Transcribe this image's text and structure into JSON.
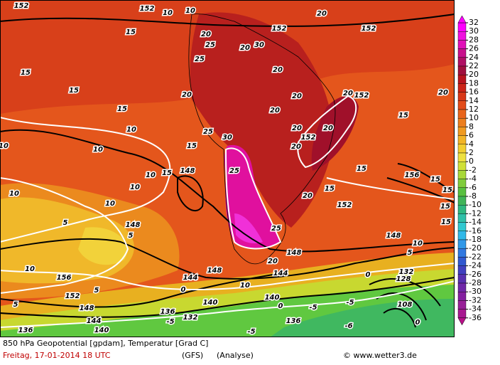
{
  "footer": {
    "title": "850 hPa Geopotential [gpdam], Temperatur [Grad C]",
    "date": "Freitag, 17-01-2014  18 UTC",
    "model": "(GFS)",
    "run": "(Analyse)",
    "credit": "© www.wetter3.de"
  },
  "contour_labels": [
    "152",
    "152",
    "10",
    "10",
    "20",
    "15",
    "20",
    "25",
    "30",
    "20",
    "152",
    "152",
    "25",
    "20",
    "15",
    "15",
    "20",
    "20",
    "20",
    "152",
    "20",
    "15",
    "20",
    "15",
    "10",
    "20",
    "152",
    "20",
    "20",
    "10",
    "15",
    "10",
    "25",
    "30",
    "25",
    "15",
    "148",
    "15",
    "10",
    "10",
    "15",
    "156",
    "15",
    "15",
    "10",
    "10",
    "20",
    "152",
    "15",
    "15",
    "5",
    "148",
    "5",
    "25",
    "148",
    "10",
    "5",
    "148",
    "20",
    "10",
    "156",
    "148",
    "144",
    "144",
    "0",
    "132",
    "128",
    "152",
    "5",
    "0",
    "10",
    "140",
    "5",
    "148",
    "140",
    "0",
    "-5",
    "-5",
    "0",
    "144",
    "136",
    "-5",
    "132",
    "136",
    "-6",
    "136",
    "140",
    "-5",
    "108"
  ],
  "color_bar": {
    "ticks": [
      32,
      30,
      28,
      26,
      24,
      22,
      20,
      18,
      16,
      14,
      12,
      10,
      8,
      6,
      4,
      2,
      0,
      -2,
      -4,
      -6,
      -8,
      -10,
      -12,
      -14,
      -16,
      -18,
      -20,
      -22,
      -24,
      -26,
      -28,
      -30,
      -32,
      -34,
      -36
    ],
    "colors": [
      "#ff00ff",
      "#f010e0",
      "#e010b8",
      "#c8108c",
      "#b01064",
      "#a0103e",
      "#b8141e",
      "#cc2418",
      "#d83818",
      "#e24c1a",
      "#e8641c",
      "#ec7e1e",
      "#f09a20",
      "#f2b426",
      "#f2ce30",
      "#eee040",
      "#d0e038",
      "#a8d838",
      "#80cc3c",
      "#58c040",
      "#40b458",
      "#30b880",
      "#30c0a8",
      "#30c8d0",
      "#30b8e8",
      "#3098e8",
      "#3078e0",
      "#3058d0",
      "#4040c0",
      "#5830b0",
      "#7028a8",
      "#8420a0",
      "#982098",
      "#a81890",
      "#b81088"
    ]
  }
}
